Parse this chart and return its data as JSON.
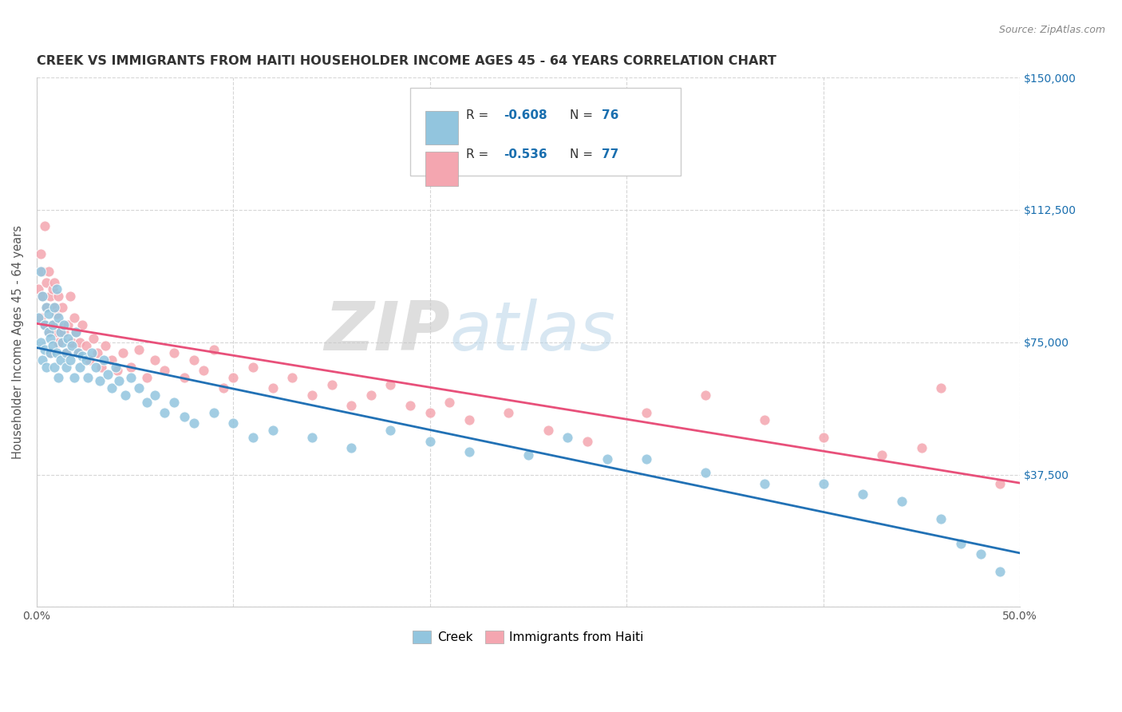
{
  "title": "CREEK VS IMMIGRANTS FROM HAITI HOUSEHOLDER INCOME AGES 45 - 64 YEARS CORRELATION CHART",
  "source": "Source: ZipAtlas.com",
  "ylabel_label": "Householder Income Ages 45 - 64 years",
  "x_min": 0.0,
  "x_max": 0.5,
  "y_min": 0,
  "y_max": 150000,
  "y_ticks": [
    0,
    37500,
    75000,
    112500,
    150000
  ],
  "y_tick_labels": [
    "",
    "$37,500",
    "$75,000",
    "$112,500",
    "$150,000"
  ],
  "x_ticks": [
    0.0,
    0.1,
    0.2,
    0.3,
    0.4,
    0.5
  ],
  "x_tick_labels": [
    "0.0%",
    "",
    "",
    "",
    "",
    "50.0%"
  ],
  "watermark_zip": "ZIP",
  "watermark_atlas": "atlas",
  "creek_color": "#92c5de",
  "haiti_color": "#f4a6b0",
  "creek_R": -0.608,
  "creek_N": 76,
  "haiti_R": -0.536,
  "haiti_N": 77,
  "legend_R_color": "#333333",
  "legend_val_color": "#1a6faf",
  "creek_line_color": "#2171b5",
  "haiti_line_color": "#e8507a",
  "title_color": "#333333",
  "axis_label_color": "#555555",
  "tick_color_right": "#1a6faf",
  "grid_color": "#cccccc",
  "background_color": "#ffffff",
  "creek_x": [
    0.001,
    0.002,
    0.002,
    0.003,
    0.003,
    0.004,
    0.004,
    0.005,
    0.005,
    0.006,
    0.006,
    0.007,
    0.007,
    0.008,
    0.008,
    0.009,
    0.009,
    0.01,
    0.01,
    0.011,
    0.011,
    0.012,
    0.012,
    0.013,
    0.014,
    0.015,
    0.015,
    0.016,
    0.017,
    0.018,
    0.019,
    0.02,
    0.021,
    0.022,
    0.023,
    0.025,
    0.026,
    0.028,
    0.03,
    0.032,
    0.034,
    0.036,
    0.038,
    0.04,
    0.042,
    0.045,
    0.048,
    0.052,
    0.056,
    0.06,
    0.065,
    0.07,
    0.075,
    0.08,
    0.09,
    0.1,
    0.11,
    0.12,
    0.14,
    0.16,
    0.18,
    0.2,
    0.22,
    0.25,
    0.27,
    0.29,
    0.31,
    0.34,
    0.37,
    0.4,
    0.42,
    0.44,
    0.46,
    0.47,
    0.48,
    0.49
  ],
  "creek_y": [
    82000,
    95000,
    75000,
    88000,
    70000,
    80000,
    73000,
    85000,
    68000,
    83000,
    78000,
    76000,
    72000,
    80000,
    74000,
    85000,
    68000,
    90000,
    72000,
    82000,
    65000,
    78000,
    70000,
    75000,
    80000,
    72000,
    68000,
    76000,
    70000,
    74000,
    65000,
    78000,
    72000,
    68000,
    71000,
    70000,
    65000,
    72000,
    68000,
    64000,
    70000,
    66000,
    62000,
    68000,
    64000,
    60000,
    65000,
    62000,
    58000,
    60000,
    55000,
    58000,
    54000,
    52000,
    55000,
    52000,
    48000,
    50000,
    48000,
    45000,
    50000,
    47000,
    44000,
    43000,
    48000,
    42000,
    42000,
    38000,
    35000,
    35000,
    32000,
    30000,
    25000,
    18000,
    15000,
    10000
  ],
  "haiti_x": [
    0.001,
    0.002,
    0.002,
    0.003,
    0.003,
    0.004,
    0.004,
    0.005,
    0.005,
    0.006,
    0.006,
    0.007,
    0.007,
    0.008,
    0.008,
    0.009,
    0.009,
    0.01,
    0.01,
    0.011,
    0.011,
    0.012,
    0.013,
    0.014,
    0.015,
    0.016,
    0.017,
    0.018,
    0.019,
    0.02,
    0.021,
    0.022,
    0.023,
    0.025,
    0.027,
    0.029,
    0.031,
    0.033,
    0.035,
    0.038,
    0.041,
    0.044,
    0.048,
    0.052,
    0.056,
    0.06,
    0.065,
    0.07,
    0.075,
    0.08,
    0.085,
    0.09,
    0.095,
    0.1,
    0.11,
    0.12,
    0.13,
    0.14,
    0.15,
    0.16,
    0.17,
    0.18,
    0.19,
    0.2,
    0.21,
    0.22,
    0.24,
    0.26,
    0.28,
    0.31,
    0.34,
    0.37,
    0.4,
    0.43,
    0.45,
    0.46,
    0.49
  ],
  "haiti_y": [
    90000,
    82000,
    100000,
    95000,
    88000,
    108000,
    80000,
    92000,
    85000,
    78000,
    95000,
    88000,
    72000,
    90000,
    80000,
    85000,
    92000,
    78000,
    83000,
    88000,
    75000,
    80000,
    85000,
    78000,
    72000,
    80000,
    88000,
    75000,
    82000,
    78000,
    72000,
    75000,
    80000,
    74000,
    70000,
    76000,
    72000,
    68000,
    74000,
    70000,
    67000,
    72000,
    68000,
    73000,
    65000,
    70000,
    67000,
    72000,
    65000,
    70000,
    67000,
    73000,
    62000,
    65000,
    68000,
    62000,
    65000,
    60000,
    63000,
    57000,
    60000,
    63000,
    57000,
    55000,
    58000,
    53000,
    55000,
    50000,
    47000,
    55000,
    60000,
    53000,
    48000,
    43000,
    45000,
    62000,
    35000
  ]
}
